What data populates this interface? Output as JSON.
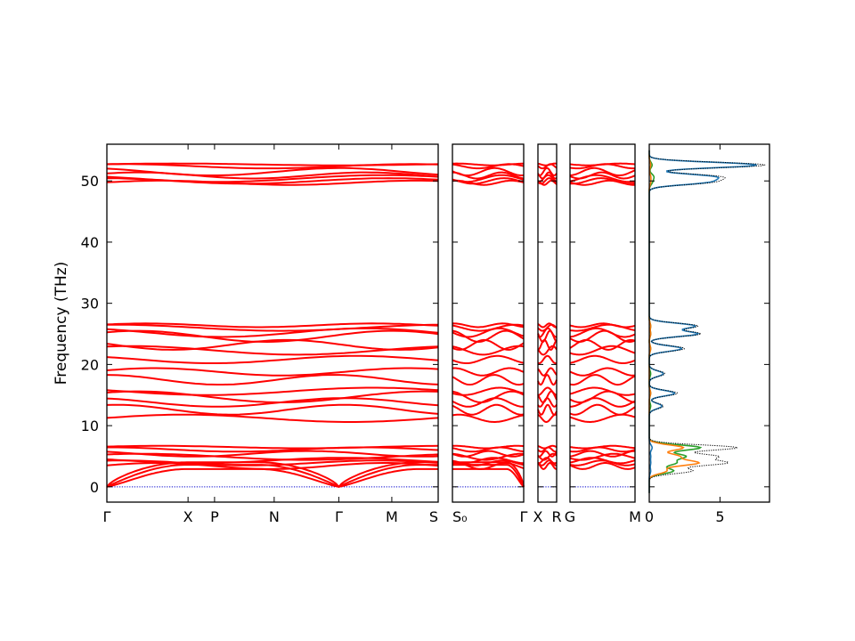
{
  "chart_data": {
    "type": "line",
    "ylabel": "Frequency (THz)",
    "ylim": [
      -2.5,
      56
    ],
    "y_ticks": [
      0,
      10,
      20,
      30,
      40,
      50
    ],
    "band_color": "#ff0000",
    "zero_line_color": "#0000cc",
    "panels": [
      {
        "id": "path-1",
        "kpoints": [
          {
            "label": "Γ",
            "pos": 0.0
          },
          {
            "label": "X",
            "pos": 0.245
          },
          {
            "label": "P",
            "pos": 0.325
          },
          {
            "label": "N",
            "pos": 0.505
          },
          {
            "label": "Γ",
            "pos": 0.7
          },
          {
            "label": "M",
            "pos": 0.86
          },
          {
            "label": "S",
            "pos": 1.0
          }
        ]
      },
      {
        "id": "path-2",
        "kpoints": [
          {
            "label": "S₀",
            "pos": 0.0
          },
          {
            "label": "Γ",
            "pos": 1.0
          }
        ]
      },
      {
        "id": "path-3",
        "kpoints": [
          {
            "label": "X",
            "pos": 0.0
          },
          {
            "label": "R",
            "pos": 1.0
          }
        ]
      },
      {
        "id": "path-4",
        "kpoints": [
          {
            "label": "G",
            "pos": 0.0
          },
          {
            "label": "M",
            "pos": 1.0
          }
        ]
      }
    ],
    "dos": {
      "xlim": [
        0,
        8.5
      ],
      "x_ticks": [
        0,
        5
      ],
      "total_color": "#000000",
      "pdos_colors": [
        "#1f77b4",
        "#ff7f0e",
        "#2ca02c"
      ],
      "peaks": [
        {
          "f": 52.6,
          "total": 8.2,
          "s0": 7.6,
          "s1": 0.1,
          "s2": 0.2
        },
        {
          "f": 50.7,
          "total": 4.6,
          "s0": 4.2,
          "s1": 0.1,
          "s2": 0.3
        },
        {
          "f": 49.8,
          "total": 4.0,
          "s0": 3.7,
          "s1": 0.1,
          "s2": 0.2
        },
        {
          "f": 26.3,
          "total": 3.4,
          "s0": 3.2,
          "s1": 0.1,
          "s2": 0.1
        },
        {
          "f": 25.0,
          "total": 3.6,
          "s0": 3.4,
          "s1": 0.1,
          "s2": 0.1
        },
        {
          "f": 22.6,
          "total": 2.5,
          "s0": 2.3,
          "s1": 0.1,
          "s2": 0.1
        },
        {
          "f": 18.5,
          "total": 1.1,
          "s0": 1.0,
          "s1": 0.0,
          "s2": 0.1
        },
        {
          "f": 15.3,
          "total": 2.0,
          "s0": 1.8,
          "s1": 0.1,
          "s2": 0.1
        },
        {
          "f": 13.2,
          "total": 1.0,
          "s0": 0.9,
          "s1": 0.0,
          "s2": 0.1
        },
        {
          "f": 6.4,
          "total": 6.2,
          "s0": 0.2,
          "s1": 2.4,
          "s2": 3.6
        },
        {
          "f": 5.0,
          "total": 4.6,
          "s0": 0.1,
          "s1": 2.0,
          "s2": 2.5
        },
        {
          "f": 3.9,
          "total": 5.3,
          "s0": 0.1,
          "s1": 3.4,
          "s2": 1.8
        },
        {
          "f": 2.6,
          "total": 3.0,
          "s0": 0.1,
          "s1": 1.2,
          "s2": 1.7
        }
      ]
    }
  }
}
